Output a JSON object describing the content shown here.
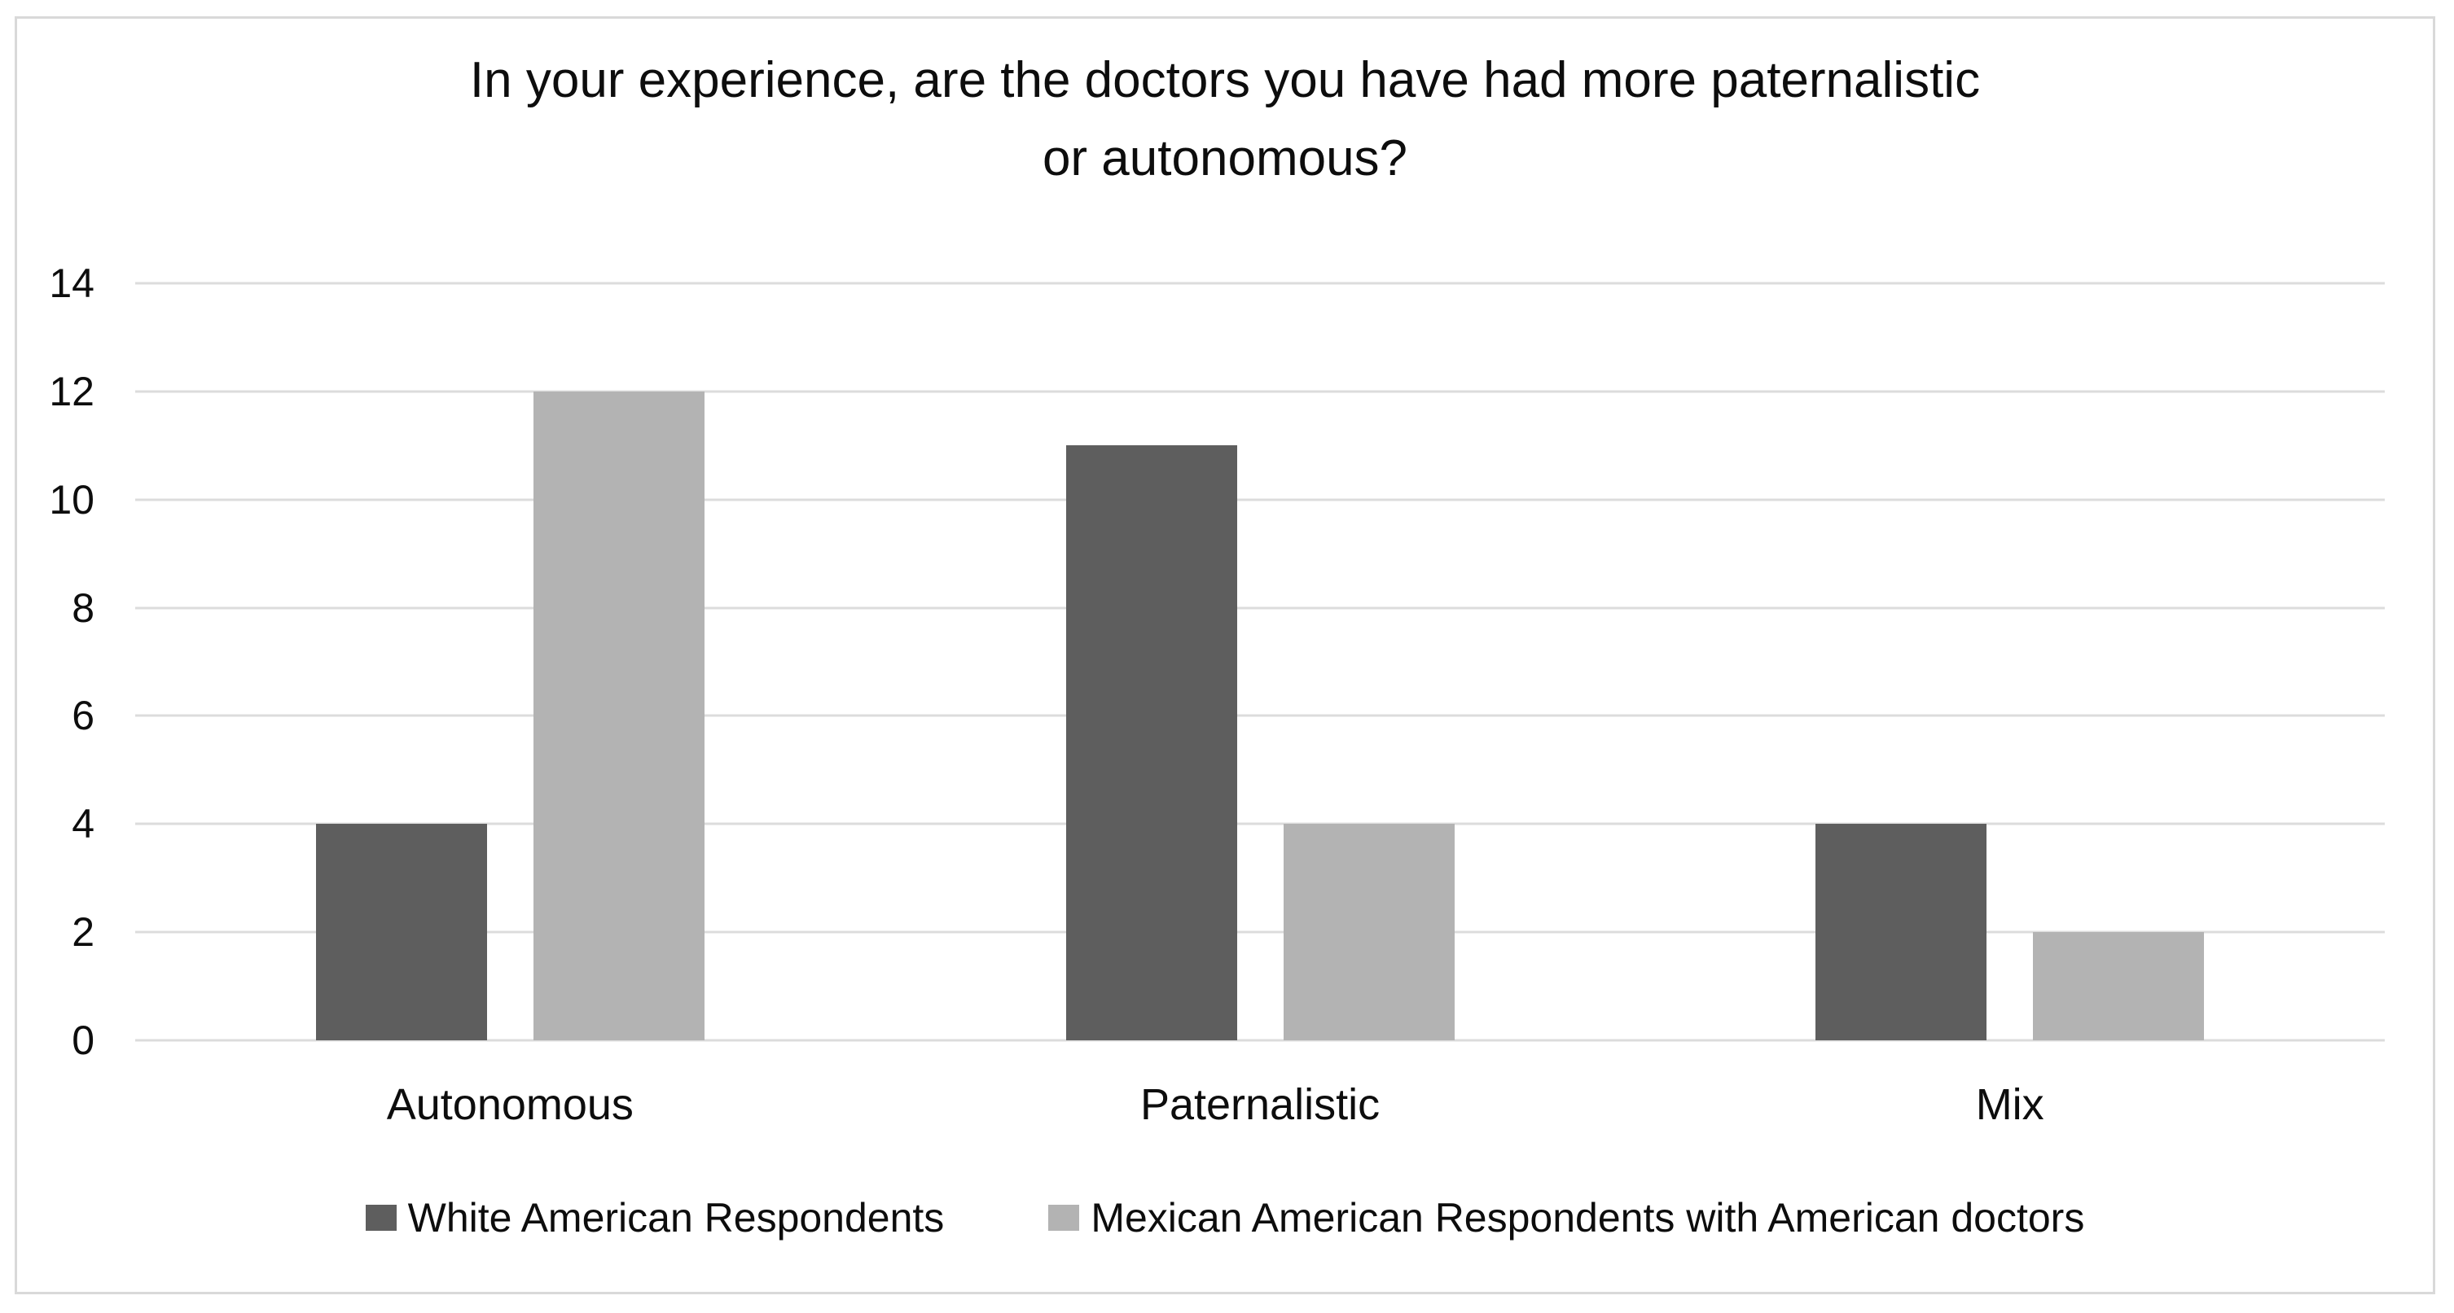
{
  "chart_data": {
    "type": "bar",
    "title": "In your experience, are the doctors you have had more paternalistic or autonomous?",
    "title_lines": [
      "In your experience, are the doctors you have had more paternalistic",
      "or autonomous?"
    ],
    "categories": [
      "Autonomous",
      "Paternalistic",
      "Mix"
    ],
    "series": [
      {
        "name": "White American Respondents",
        "color": "#5e5e5e",
        "values": [
          4,
          11,
          4
        ]
      },
      {
        "name": "Mexican American Respondents with American doctors",
        "color": "#b3b3b3",
        "values": [
          12,
          4,
          2
        ]
      }
    ],
    "xlabel": "",
    "ylabel": "",
    "ylim": [
      0,
      14
    ],
    "ytick_step": 2,
    "yticks": [
      0,
      2,
      4,
      6,
      8,
      10,
      12,
      14
    ],
    "grid": "horizontal",
    "legend_position": "bottom"
  },
  "colors": {
    "series_dark": "#5e5e5e",
    "series_light": "#b3b3b3",
    "gridline": "#dcdcdc",
    "figure_border": "#d9d9d9",
    "text": "#0d0d0d",
    "background": "#ffffff"
  }
}
